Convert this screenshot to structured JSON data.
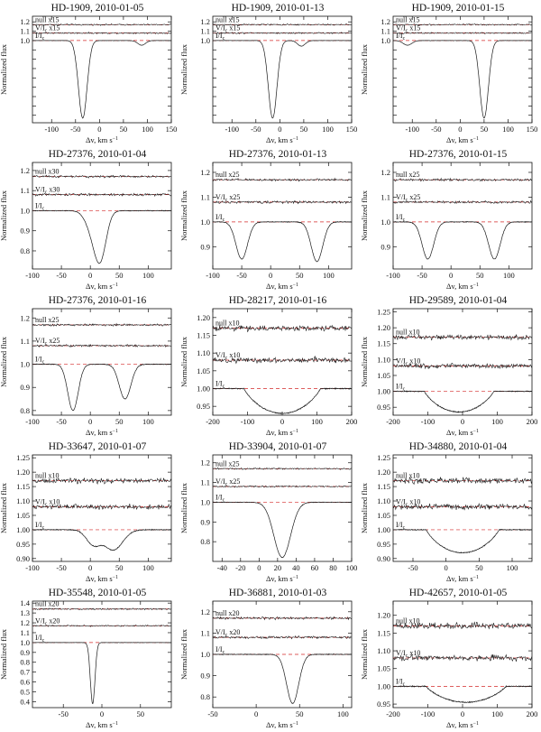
{
  "figure": {
    "ylabel": "Normalized flux",
    "xlabel": "Δv, km s⁻¹",
    "colors": {
      "observed": "#1a1a1a",
      "model": "#d42a2a",
      "frame": "#111111"
    }
  },
  "chart_data": [
    {
      "type": "line",
      "title": "HD-1909, 2010-01-05",
      "xlabel": "Δv, km s⁻¹",
      "ylabel": "Normalized flux",
      "xlim": [
        -140,
        150
      ],
      "ylim": [
        0.12,
        1.26
      ],
      "xticks": [
        -100,
        -50,
        0,
        50,
        100,
        150
      ],
      "yticks": [
        0.2,
        0.3,
        0.4,
        0.5,
        0.6,
        0.7,
        0.8,
        0.9,
        1.0,
        1.1,
        1.2
      ],
      "ytick_labels": [
        "",
        "",
        "",
        "",
        "",
        "",
        "",
        "",
        "1.0",
        "1.1",
        "1.2"
      ],
      "series_labels": {
        "null": "null x15",
        "v": "V/I_c x15",
        "i": "I/I_c"
      },
      "offsets": {
        "null": 1.17,
        "v": 1.08,
        "i": 1.0
      },
      "noise": {
        "null": 0.008,
        "v": 0.008
      },
      "lines": [
        {
          "center": -35,
          "depth": 0.83,
          "width": 9
        },
        {
          "center": 88,
          "depth": 0.05,
          "width": 8
        }
      ]
    },
    {
      "type": "line",
      "title": "HD-1909, 2010-01-13",
      "xlabel": "Δv, km s⁻¹",
      "ylabel": "Normalized flux",
      "xlim": [
        -140,
        150
      ],
      "ylim": [
        0.12,
        1.26
      ],
      "xticks": [
        -100,
        -50,
        0,
        50,
        100,
        150
      ],
      "yticks": [
        0.2,
        0.3,
        0.4,
        0.5,
        0.6,
        0.7,
        0.8,
        0.9,
        1.0,
        1.1,
        1.2
      ],
      "ytick_labels": [
        "",
        "",
        "",
        "",
        "",
        "",
        "",
        "",
        "1.0",
        "1.1",
        "1.2"
      ],
      "series_labels": {
        "null": "null x15",
        "v": "V/I_c x15",
        "i": "I/I_c"
      },
      "offsets": {
        "null": 1.17,
        "v": 1.08,
        "i": 1.0
      },
      "noise": {
        "null": 0.008,
        "v": 0.008
      },
      "lines": [
        {
          "center": -15,
          "depth": 0.83,
          "width": 9
        },
        {
          "center": 45,
          "depth": 0.06,
          "width": 8
        }
      ]
    },
    {
      "type": "line",
      "title": "HD-1909, 2010-01-15",
      "xlabel": "Δv, km s⁻¹",
      "ylabel": "Normalized flux",
      "xlim": [
        -140,
        150
      ],
      "ylim": [
        0.12,
        1.26
      ],
      "xticks": [
        -100,
        -50,
        0,
        50,
        100,
        150
      ],
      "yticks": [
        0.2,
        0.3,
        0.4,
        0.5,
        0.6,
        0.7,
        0.8,
        0.9,
        1.0,
        1.1,
        1.2
      ],
      "ytick_labels": [
        "",
        "",
        "",
        "",
        "",
        "",
        "",
        "",
        "1.0",
        "1.1",
        "1.2"
      ],
      "series_labels": {
        "null": "null x15",
        "v": "V/I_c x15",
        "i": "I/I_c"
      },
      "offsets": {
        "null": 1.17,
        "v": 1.08,
        "i": 1.0
      },
      "noise": {
        "null": 0.008,
        "v": 0.008
      },
      "lines": [
        {
          "center": 50,
          "depth": 0.83,
          "width": 9
        },
        {
          "center": -110,
          "depth": 0.05,
          "width": 9
        }
      ]
    },
    {
      "type": "line",
      "title": "HD-27376, 2010-01-04",
      "xlabel": "Δv, km s⁻¹",
      "ylabel": "Normalized flux",
      "xlim": [
        -100,
        140
      ],
      "ylim": [
        0.71,
        1.24
      ],
      "xticks": [
        -100,
        -50,
        0,
        50,
        100
      ],
      "yticks": [
        0.8,
        0.9,
        1.0,
        1.1,
        1.2
      ],
      "ytick_labels": [
        "0.8",
        "0.9",
        "1.0",
        "1.1",
        "1.2"
      ],
      "series_labels": {
        "null": "null x30",
        "v": "V/I_c x30",
        "i": "I/I_c"
      },
      "offsets": {
        "null": 1.17,
        "v": 1.08,
        "i": 1.0
      },
      "noise": {
        "null": 0.006,
        "v": 0.006
      },
      "lines": [
        {
          "center": 5,
          "depth": 0.1,
          "width": 12
        },
        {
          "center": 18,
          "depth": 0.2,
          "width": 10
        }
      ]
    },
    {
      "type": "line",
      "title": "HD-27376, 2010-01-13",
      "xlabel": "Δv, km s⁻¹",
      "ylabel": "Normalized flux",
      "xlim": [
        -100,
        140
      ],
      "ylim": [
        0.81,
        1.24
      ],
      "xticks": [
        -100,
        -50,
        0,
        50,
        100
      ],
      "yticks": [
        0.9,
        1.0,
        1.1,
        1.2
      ],
      "ytick_labels": [
        "0.9",
        "1.0",
        "1.1",
        "1.2"
      ],
      "series_labels": {
        "null": "null x25",
        "v": "V/I_c x25",
        "i": "I/I_c"
      },
      "offsets": {
        "null": 1.17,
        "v": 1.08,
        "i": 1.0
      },
      "noise": {
        "null": 0.005,
        "v": 0.005
      },
      "lines": [
        {
          "center": -50,
          "depth": 0.15,
          "width": 10
        },
        {
          "center": 80,
          "depth": 0.16,
          "width": 10
        }
      ]
    },
    {
      "type": "line",
      "title": "HD-27376, 2010-01-15",
      "xlabel": "Δv, km s⁻¹",
      "ylabel": "Normalized flux",
      "xlim": [
        -100,
        140
      ],
      "ylim": [
        0.81,
        1.24
      ],
      "xticks": [
        -100,
        -50,
        0,
        50,
        100
      ],
      "yticks": [
        0.9,
        1.0,
        1.1,
        1.2
      ],
      "ytick_labels": [
        "0.9",
        "1.0",
        "1.1",
        "1.2"
      ],
      "series_labels": {
        "null": "null x25",
        "v": "V/I_c x25",
        "i": "I/I_c"
      },
      "offsets": {
        "null": 1.17,
        "v": 1.08,
        "i": 1.0
      },
      "noise": {
        "null": 0.005,
        "v": 0.005
      },
      "lines": [
        {
          "center": -40,
          "depth": 0.15,
          "width": 10
        },
        {
          "center": 75,
          "depth": 0.15,
          "width": 10
        }
      ]
    },
    {
      "type": "line",
      "title": "HD-27376, 2010-01-16",
      "xlabel": "Δv, km s⁻¹",
      "ylabel": "Normalized flux",
      "xlim": [
        -100,
        140
      ],
      "ylim": [
        0.78,
        1.24
      ],
      "xticks": [
        -100,
        -50,
        0,
        50,
        100
      ],
      "yticks": [
        0.8,
        0.9,
        1.0,
        1.1,
        1.2
      ],
      "ytick_labels": [
        "0.8",
        "0.9",
        "1.0",
        "1.1",
        "1.2"
      ],
      "series_labels": {
        "null": "null x25",
        "v": "V/I_c x25",
        "i": "I/I_c"
      },
      "offsets": {
        "null": 1.17,
        "v": 1.08,
        "i": 1.0
      },
      "noise": {
        "null": 0.005,
        "v": 0.005
      },
      "lines": [
        {
          "center": -30,
          "depth": 0.2,
          "width": 9
        },
        {
          "center": 60,
          "depth": 0.15,
          "width": 10
        }
      ]
    },
    {
      "type": "line",
      "title": "HD-28217, 2010-01-16",
      "xlabel": "Δv, km s⁻¹",
      "ylabel": "Normalized flux",
      "xlim": [
        -200,
        200
      ],
      "ylim": [
        0.925,
        1.225
      ],
      "xticks": [
        -200,
        -100,
        0,
        100,
        200
      ],
      "yticks": [
        0.95,
        1.0,
        1.05,
        1.1,
        1.15,
        1.2
      ],
      "ytick_labels": [
        "0.95",
        "1.00",
        "1.05",
        "1.10",
        "1.15",
        "1.20"
      ],
      "series_labels": {
        "null": "null x10",
        "v": "V/I_c x10",
        "i": "I/I_c"
      },
      "offsets": {
        "null": 1.17,
        "v": 1.08,
        "i": 1.0
      },
      "noise": {
        "null": 0.008,
        "v": 0.008
      },
      "broad": {
        "center": 0,
        "depth": 0.07,
        "halfwidth": 110
      }
    },
    {
      "type": "line",
      "title": "HD-29589, 2010-01-04",
      "xlabel": "Δv, km s⁻¹",
      "ylabel": "Normalized flux",
      "xlim": [
        -200,
        200
      ],
      "ylim": [
        0.925,
        1.26
      ],
      "xticks": [
        -200,
        -100,
        0,
        100,
        200
      ],
      "yticks": [
        0.95,
        1.0,
        1.05,
        1.1,
        1.15,
        1.2,
        1.25
      ],
      "ytick_labels": [
        "0.95",
        "1.00",
        "1.05",
        "1.10",
        "1.15",
        "1.20",
        "1.25"
      ],
      "series_labels": {
        "null": "null x10",
        "v": "V/I_c x10",
        "i": "I/I_c"
      },
      "offsets": {
        "null": 1.17,
        "v": 1.08,
        "i": 1.0
      },
      "noise": {
        "null": 0.008,
        "v": 0.008
      },
      "broad": {
        "center": -10,
        "depth": 0.065,
        "halfwidth": 100
      }
    },
    {
      "type": "line",
      "title": "HD-33647, 2010-01-07",
      "xlabel": "Δv, km s⁻¹",
      "ylabel": "Normalized flux",
      "xlim": [
        -100,
        140
      ],
      "ylim": [
        0.89,
        1.26
      ],
      "xticks": [
        -100,
        -50,
        0,
        50,
        100
      ],
      "yticks": [
        0.9,
        0.95,
        1.0,
        1.05,
        1.1,
        1.15,
        1.2,
        1.25
      ],
      "ytick_labels": [
        "0.90",
        "0.95",
        "1.00",
        "1.05",
        "1.10",
        "1.15",
        "1.20",
        "1.25"
      ],
      "series_labels": {
        "null": "null x10",
        "v": "V/I_c x10",
        "i": "I/I_c"
      },
      "offsets": {
        "null": 1.17,
        "v": 1.08,
        "i": 1.0
      },
      "noise": {
        "null": 0.009,
        "v": 0.009
      },
      "lines": [
        {
          "center": 5,
          "depth": 0.05,
          "width": 12
        },
        {
          "center": 40,
          "depth": 0.07,
          "width": 16
        }
      ]
    },
    {
      "type": "line",
      "title": "HD-33904, 2010-01-07",
      "xlabel": "Δv, km s⁻¹",
      "ylabel": "Normalized flux",
      "xlim": [
        -50,
        100
      ],
      "ylim": [
        0.7,
        1.24
      ],
      "xticks": [
        -40,
        -20,
        0,
        20,
        40,
        60,
        80,
        100
      ],
      "yticks": [
        0.8,
        0.9,
        1.0,
        1.1,
        1.2
      ],
      "ytick_labels": [
        "0.8",
        "0.9",
        "1.0",
        "1.1",
        "1.2"
      ],
      "series_labels": {
        "null": "null x25",
        "v": "V/I_c x25",
        "i": "I/I_c"
      },
      "offsets": {
        "null": 1.17,
        "v": 1.08,
        "i": 1.0
      },
      "noise": {
        "null": 0.004,
        "v": 0.004
      },
      "lines": [
        {
          "center": 25,
          "depth": 0.28,
          "width": 9
        }
      ]
    },
    {
      "type": "line",
      "title": "HD-34880, 2010-01-04",
      "xlabel": "Δv, km s⁻¹",
      "ylabel": "Normalized flux",
      "xlim": [
        -80,
        130
      ],
      "ylim": [
        0.89,
        1.26
      ],
      "xticks": [
        -50,
        0,
        50,
        100
      ],
      "yticks": [
        0.9,
        0.95,
        1.0,
        1.05,
        1.1,
        1.15,
        1.2,
        1.25
      ],
      "ytick_labels": [
        "0.90",
        "0.95",
        "1.00",
        "1.05",
        "1.10",
        "1.15",
        "1.20",
        "1.25"
      ],
      "series_labels": {
        "null": "null x10",
        "v": "V/I_c x10",
        "i": "I/I_c"
      },
      "offsets": {
        "null": 1.17,
        "v": 1.08,
        "i": 1.0
      },
      "noise": {
        "null": 0.011,
        "v": 0.011
      },
      "broad": {
        "center": 25,
        "depth": 0.08,
        "halfwidth": 55
      }
    },
    {
      "type": "line",
      "title": "HD-35548, 2010-01-05",
      "xlabel": "Δv, km s⁻¹",
      "ylabel": "Normalized flux",
      "xlim": [
        -90,
        90
      ],
      "ylim": [
        0.34,
        1.42
      ],
      "xticks": [
        -50,
        0,
        50
      ],
      "yticks": [
        0.4,
        0.5,
        0.6,
        0.7,
        0.8,
        0.9,
        1.0,
        1.1,
        1.2,
        1.3,
        1.4
      ],
      "ytick_labels": [
        "0.4",
        "0.5",
        "0.6",
        "0.7",
        "0.8",
        "0.9",
        "1.0",
        "1.1",
        "1.2",
        "1.3",
        "1.4"
      ],
      "series_labels": {
        "null": "null x20",
        "v": "V/I_c x20",
        "i": "I/I_c"
      },
      "offsets": {
        "null": 1.34,
        "v": 1.17,
        "i": 1.0
      },
      "noise": {
        "null": 0.008,
        "v": 0.008
      },
      "lines": [
        {
          "center": -12,
          "depth": 0.62,
          "width": 3
        }
      ]
    },
    {
      "type": "line",
      "title": "HD-36881, 2010-01-03",
      "xlabel": "Δv, km s⁻¹",
      "ylabel": "Normalized flux",
      "xlim": [
        -50,
        110
      ],
      "ylim": [
        0.75,
        1.25
      ],
      "xticks": [
        -50,
        0,
        50,
        100
      ],
      "yticks": [
        0.8,
        0.9,
        1.0,
        1.1,
        1.2
      ],
      "ytick_labels": [
        "0.8",
        "0.9",
        "1.0",
        "1.1",
        "1.2"
      ],
      "series_labels": {
        "null": "null x20",
        "v": "V/I_c x20",
        "i": "I/I_c"
      },
      "offsets": {
        "null": 1.17,
        "v": 1.08,
        "i": 1.0
      },
      "noise": {
        "null": 0.006,
        "v": 0.006
      },
      "lines": [
        {
          "center": 42,
          "depth": 0.23,
          "width": 7
        }
      ]
    },
    {
      "type": "line",
      "title": "HD-42657, 2010-01-05",
      "xlabel": "Δv, km s⁻¹",
      "ylabel": "Normalized flux",
      "xlim": [
        -200,
        200
      ],
      "ylim": [
        0.94,
        1.24
      ],
      "xticks": [
        -200,
        -100,
        0,
        100,
        200
      ],
      "yticks": [
        0.95,
        1.0,
        1.05,
        1.1,
        1.15,
        1.2
      ],
      "ytick_labels": [
        "0.95",
        "1.00",
        "1.05",
        "1.10",
        "1.15",
        "1.20"
      ],
      "series_labels": {
        "null": "null x10",
        "v": "V/I_c x10",
        "i": "I/I_c"
      },
      "offsets": {
        "null": 1.17,
        "v": 1.08,
        "i": 1.0
      },
      "noise": {
        "null": 0.009,
        "v": 0.009
      },
      "broad": {
        "center": 10,
        "depth": 0.045,
        "halfwidth": 115
      }
    }
  ]
}
